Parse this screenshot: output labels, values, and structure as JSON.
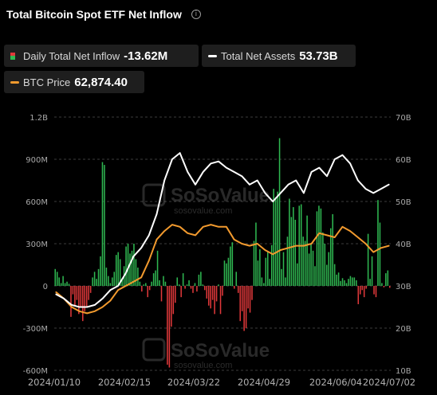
{
  "title": "Total Bitcoin Spot ETF Net Inflow",
  "legend": {
    "inflow": {
      "label": "Daily Total Net Inflow",
      "value": "-13.62M"
    },
    "assets": {
      "label": "Total Net Assets",
      "value": "53.73B"
    },
    "price": {
      "label": "BTC Price",
      "value": "62,874.40"
    }
  },
  "watermark": {
    "brand": "SoSoValue",
    "site": "sosovalue.com"
  },
  "colors": {
    "positive_bar": "#2fb851",
    "negative_bar": "#e0383a",
    "net_assets_line": "#ffffff",
    "btc_price_line": "#f29a2e",
    "grid": "#3c3c3c"
  },
  "chart_data": {
    "type": "bar",
    "title": "Total Bitcoin Spot ETF Net Inflow",
    "x_tick_labels": [
      "2024/01/10",
      "2024/02/15",
      "2024/03/22",
      "2024/04/29",
      "2024/06/04",
      "2024/07/02"
    ],
    "x_range": [
      "2024/01/10",
      "2024/07/02"
    ],
    "y_left": {
      "ticks": [
        "1.2B",
        "900M",
        "600M",
        "300M",
        "0",
        "-300M",
        "-600M"
      ],
      "range": [
        -600,
        1200
      ],
      "unit": "M USD"
    },
    "y_right": {
      "ticks": [
        "70B",
        "60B",
        "50B",
        "40B",
        "30B",
        "20B",
        "10B"
      ],
      "range": [
        10,
        70
      ],
      "unit": "B USD"
    },
    "grid": "horizontal, dashed",
    "series": [
      {
        "name": "Daily Total Net Inflow",
        "type": "bar",
        "axis": "left",
        "values": [
          -13.62,
          110,
          90,
          -10,
          20,
          450,
          610,
          -80,
          -60,
          210,
          50,
          370,
          -20,
          -80,
          -30,
          -60,
          -130,
          40,
          60,
          60,
          70,
          50,
          20,
          40,
          55,
          35,
          95,
          80,
          155,
          510,
          410,
          240,
          150,
          300,
          380,
          550,
          570,
          530,
          140,
          250,
          300,
          230,
          500,
          320,
          350,
          580,
          570,
          160,
          470,
          560,
          490,
          620,
          350,
          60,
          240,
          120,
          1050,
          670,
          630,
          690,
          290,
          50,
          240,
          200,
          20,
          60,
          260,
          180,
          450,
          320,
          -100,
          -190,
          -160,
          -300,
          -320,
          -180,
          -250,
          -50,
          100,
          -20,
          310,
          280,
          200,
          160,
          180,
          -70,
          -200,
          10,
          -110,
          -200,
          -100,
          -160,
          -140,
          -90,
          -30,
          10,
          100,
          80,
          -40,
          20,
          -50,
          -20,
          40,
          10,
          -20,
          90,
          -80,
          10,
          60,
          -120,
          -200,
          -290,
          -580,
          -560,
          30,
          70,
          -110,
          40,
          250,
          110,
          90,
          30,
          -30,
          -80,
          20,
          10,
          -40,
          30,
          130,
          190,
          300,
          250,
          230,
          300,
          280,
          140,
          40,
          190,
          240,
          220,
          100,
          60,
          20,
          70,
          130,
          860,
          880,
          210,
          120,
          50,
          100,
          60,
          -50,
          -100,
          -150,
          -180,
          -250,
          -150,
          -200,
          -100,
          -140,
          -60,
          -220,
          15,
          30,
          20,
          70,
          20,
          60,
          100,
          120
        ]
      },
      {
        "name": "Total Net Assets",
        "type": "line",
        "axis": "right",
        "x": [
          "2024/01/11",
          "2024/01/15",
          "2024/01/19",
          "2024/01/23",
          "2024/01/27",
          "2024/01/31",
          "2024/02/04",
          "2024/02/08",
          "2024/02/12",
          "2024/02/16",
          "2024/02/20",
          "2024/02/24",
          "2024/02/28",
          "2024/03/03",
          "2024/03/07",
          "2024/03/11",
          "2024/03/15",
          "2024/03/19",
          "2024/03/23",
          "2024/03/27",
          "2024/03/31",
          "2024/04/04",
          "2024/04/08",
          "2024/04/12",
          "2024/04/16",
          "2024/04/20",
          "2024/04/24",
          "2024/04/28",
          "2024/05/02",
          "2024/05/06",
          "2024/05/10",
          "2024/05/14",
          "2024/05/18",
          "2024/05/22",
          "2024/05/26",
          "2024/05/30",
          "2024/06/03",
          "2024/06/07",
          "2024/06/11",
          "2024/06/15",
          "2024/06/19",
          "2024/06/23",
          "2024/06/27",
          "2024/07/01"
        ],
        "values": [
          28,
          27,
          25.5,
          25,
          25,
          25.5,
          27,
          29,
          30,
          33,
          37,
          39,
          42,
          47,
          55,
          60,
          61.5,
          57,
          54,
          57,
          59,
          59.5,
          58,
          57,
          56,
          54,
          55,
          52,
          50,
          52,
          54,
          55,
          52,
          57,
          58,
          56,
          60,
          61,
          59,
          55,
          53,
          52,
          53,
          54
        ]
      },
      {
        "name": "BTC Price",
        "type": "line",
        "axis": "right",
        "x": [
          "2024/01/11",
          "2024/01/15",
          "2024/01/19",
          "2024/01/23",
          "2024/01/27",
          "2024/01/31",
          "2024/02/04",
          "2024/02/08",
          "2024/02/12",
          "2024/02/16",
          "2024/02/20",
          "2024/02/24",
          "2024/02/28",
          "2024/03/03",
          "2024/03/07",
          "2024/03/11",
          "2024/03/15",
          "2024/03/19",
          "2024/03/23",
          "2024/03/27",
          "2024/03/31",
          "2024/04/04",
          "2024/04/08",
          "2024/04/12",
          "2024/04/16",
          "2024/04/20",
          "2024/04/24",
          "2024/04/28",
          "2024/05/02",
          "2024/05/06",
          "2024/05/10",
          "2024/05/14",
          "2024/05/18",
          "2024/05/22",
          "2024/05/26",
          "2024/05/30",
          "2024/06/03",
          "2024/06/07",
          "2024/06/11",
          "2024/06/15",
          "2024/06/19",
          "2024/06/23",
          "2024/06/27",
          "2024/07/01"
        ],
        "values": [
          28.5,
          27,
          25,
          24,
          23.5,
          24,
          25,
          26.5,
          29,
          30,
          31,
          32,
          36,
          41,
          43,
          44.5,
          44,
          42.5,
          42,
          44,
          44.5,
          44,
          44,
          41,
          40,
          39.5,
          40,
          38.5,
          37.5,
          38.5,
          39,
          39.5,
          39.5,
          40,
          42.5,
          42,
          41.5,
          44,
          43,
          41.5,
          40,
          38,
          39,
          39.5
        ]
      }
    ]
  }
}
